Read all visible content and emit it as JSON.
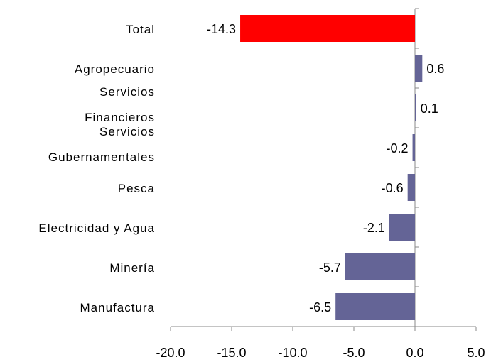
{
  "chart_data": {
    "type": "bar",
    "orientation": "horizontal",
    "categories": [
      "Total",
      "Agropecuario",
      "Servicios\nFinancieros",
      "Servicios\nGubernamentales",
      "Pesca",
      "Electricidad y Agua",
      "Minería",
      "Manufactura"
    ],
    "values": [
      -14.3,
      0.6,
      0.1,
      -0.2,
      -0.6,
      -2.1,
      -5.7,
      -6.5
    ],
    "colors": [
      "#ff0000",
      "#646496",
      "#646496",
      "#646496",
      "#646496",
      "#646496",
      "#646496",
      "#646496"
    ],
    "xlim": [
      -20,
      5
    ],
    "xticks": [
      {
        "value": -20,
        "label": "-20.0"
      },
      {
        "value": -15,
        "label": "-15.0"
      },
      {
        "value": -10,
        "label": "-10.0"
      },
      {
        "value": -5,
        "label": "-5.0"
      },
      {
        "value": 0,
        "label": "0.0"
      },
      {
        "value": 5,
        "label": "5.0"
      }
    ]
  }
}
